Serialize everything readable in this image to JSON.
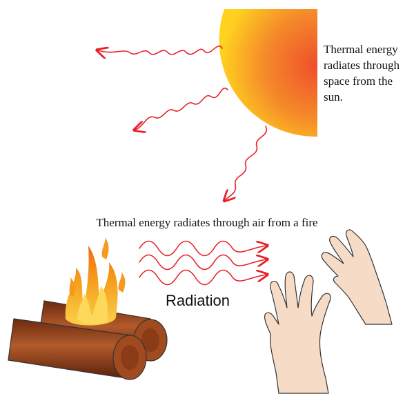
{
  "captions": {
    "sun_lines": [
      "Thermal energy",
      "radiates through",
      "space from the",
      "sun."
    ],
    "fire": "Thermal energy radiates through air from a fire",
    "radiation": "Radiation"
  },
  "colors": {
    "ray": "#e8202a",
    "sun_inner": "#ef4e2a",
    "sun_outer": "#ffd21f",
    "flame_outer": "#f5a21c",
    "flame_inner": "#fcd95a",
    "log": "#8b3b18",
    "log_end": "#a04a20",
    "skin": "#f6dcc6",
    "outline": "#333333"
  },
  "icons": [
    "sun-icon",
    "campfire-icon",
    "hands-icon",
    "heat-ray-arrow-icon"
  ]
}
